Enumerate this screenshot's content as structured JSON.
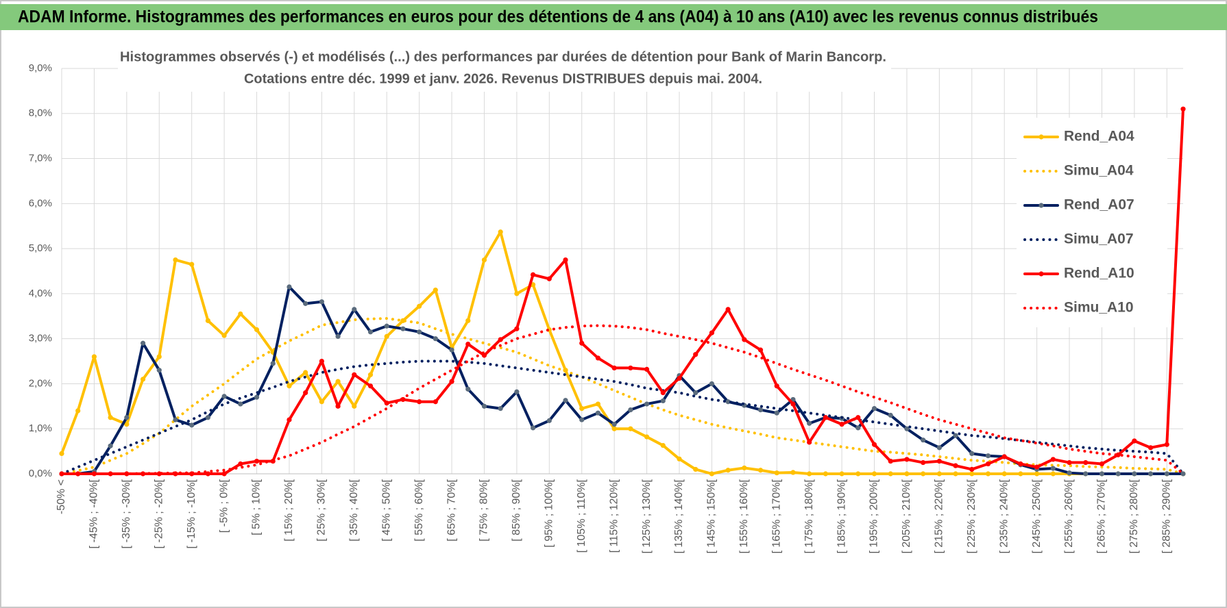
{
  "header": {
    "title": "ADAM Informe. Histogrammes des performances en euros pour des détentions de 4 ans (A04) à 10 ans (A10) avec les revenus connus distribués"
  },
  "chart_data": {
    "type": "line",
    "title": "Histogrammes observés (-) et modélisés (...) des performances par durées de détention pour Bank of Marin Bancorp.",
    "subtitle": "Cotations entre déc. 1999 et janv. 2026.  Revenus DISTRIBUES depuis mai. 2004.",
    "categories": [
      "-50% <",
      null,
      "[ -45% ; -40%[",
      null,
      "[ -35% ; -30%[",
      null,
      "[ -25% ; -20%[",
      null,
      "[ -15% ; -10%[",
      null,
      "[ -5% ; 0%[",
      null,
      "[ 5% ; 10%[",
      null,
      "[ 15% ; 20%[",
      null,
      "[ 25% ; 30%[",
      null,
      "[ 35% ; 40%[",
      null,
      "[ 45% ; 50%[",
      null,
      "[ 55% ; 60%[",
      null,
      "[ 65% ; 70%[",
      null,
      "[ 75% ; 80%[",
      null,
      "[ 85% ; 90%[",
      null,
      "[ 95% ; 100%[",
      null,
      "[ 105% ; 110%[",
      null,
      "[ 115% ; 120%[",
      null,
      "[ 125% ; 130%[",
      null,
      "[ 135% ; 140%[",
      null,
      "[ 145% ; 150%[",
      null,
      "[ 155% ; 160%[",
      null,
      "[ 165% ; 170%[",
      null,
      "[ 175% ; 180%[",
      null,
      "[ 185% ; 190%[",
      null,
      "[ 195% ; 200%[",
      null,
      "[ 205% ; 210%[",
      null,
      "[ 215% ; 220%[",
      null,
      "[ 225% ; 230%[",
      null,
      "[ 235% ; 240%[",
      null,
      "[ 245% ; 250%[",
      null,
      "[ 255% ; 260%[",
      null,
      "[ 265% ; 270%[",
      null,
      "[ 275% ; 280%[",
      null,
      "[ 285% ; 290%[",
      null
    ],
    "series": [
      {
        "name": "Rend_A04",
        "color": "#ffc000",
        "line_style": "solid",
        "marker_color": "#ffc000",
        "values": [
          0.45,
          1.4,
          2.6,
          1.25,
          1.1,
          2.1,
          2.6,
          4.75,
          4.65,
          3.4,
          3.07,
          3.55,
          3.2,
          2.7,
          1.95,
          2.25,
          1.6,
          2.05,
          1.5,
          2.2,
          3.05,
          3.4,
          3.72,
          4.08,
          2.8,
          3.4,
          4.75,
          5.37,
          4.0,
          4.2,
          3.2,
          2.3,
          1.45,
          1.55,
          1.0,
          1.0,
          0.82,
          0.63,
          0.33,
          0.1,
          0.0,
          0.08,
          0.13,
          0.08,
          0.02,
          0.03,
          0,
          0,
          0,
          0,
          0,
          0,
          0,
          0,
          0,
          0,
          0,
          0,
          0,
          0,
          0,
          0,
          0,
          0,
          0,
          0,
          0,
          0,
          0,
          0
        ]
      },
      {
        "name": "Simu_A04",
        "color": "#ffc000",
        "line_style": "dotted",
        "values": [
          0,
          0.07,
          0.15,
          0.3,
          0.45,
          0.67,
          0.9,
          1.2,
          1.5,
          1.75,
          2.0,
          2.28,
          2.55,
          2.75,
          2.95,
          3.12,
          3.3,
          3.36,
          3.42,
          3.44,
          3.45,
          3.4,
          3.35,
          3.22,
          3.1,
          3.0,
          2.9,
          2.8,
          2.7,
          2.55,
          2.4,
          2.28,
          2.15,
          2.0,
          1.85,
          1.7,
          1.55,
          1.42,
          1.3,
          1.2,
          1.1,
          1.02,
          0.95,
          0.88,
          0.8,
          0.75,
          0.7,
          0.65,
          0.6,
          0.55,
          0.5,
          0.48,
          0.45,
          0.42,
          0.38,
          0.34,
          0.3,
          0.28,
          0.25,
          0.22,
          0.2,
          0.19,
          0.18,
          0.16,
          0.15,
          0.14,
          0.12,
          0.11,
          0.1,
          0
        ]
      },
      {
        "name": "Rend_A07",
        "color": "#002060",
        "line_style": "solid",
        "marker_color": "#5a6b7d",
        "values": [
          0,
          0,
          0.05,
          0.62,
          1.25,
          2.9,
          2.3,
          1.2,
          1.08,
          1.25,
          1.72,
          1.55,
          1.7,
          2.45,
          4.15,
          3.78,
          3.82,
          3.05,
          3.65,
          3.15,
          3.28,
          3.22,
          3.15,
          3.0,
          2.75,
          1.88,
          1.5,
          1.45,
          1.82,
          1.02,
          1.18,
          1.63,
          1.2,
          1.35,
          1.1,
          1.42,
          1.55,
          1.62,
          2.18,
          1.8,
          2.0,
          1.6,
          1.52,
          1.42,
          1.35,
          1.65,
          1.12,
          1.25,
          1.23,
          1.02,
          1.45,
          1.3,
          1.0,
          0.75,
          0.58,
          0.85,
          0.45,
          0.4,
          0.38,
          0.2,
          0.1,
          0.12,
          0.02,
          0,
          0,
          0,
          0,
          0,
          0,
          0
        ]
      },
      {
        "name": "Simu_A07",
        "color": "#002060",
        "line_style": "dotted",
        "values": [
          0,
          0.15,
          0.3,
          0.45,
          0.6,
          0.75,
          0.9,
          1.05,
          1.2,
          1.38,
          1.55,
          1.68,
          1.8,
          1.92,
          2.05,
          2.15,
          2.25,
          2.32,
          2.38,
          2.42,
          2.45,
          2.48,
          2.5,
          2.5,
          2.5,
          2.48,
          2.45,
          2.4,
          2.35,
          2.3,
          2.25,
          2.2,
          2.15,
          2.1,
          2.05,
          1.98,
          1.9,
          1.85,
          1.8,
          1.72,
          1.65,
          1.6,
          1.55,
          1.5,
          1.45,
          1.4,
          1.35,
          1.3,
          1.25,
          1.2,
          1.15,
          1.1,
          1.05,
          1.0,
          0.95,
          0.9,
          0.85,
          0.82,
          0.78,
          0.74,
          0.7,
          0.66,
          0.62,
          0.58,
          0.55,
          0.52,
          0.5,
          0.48,
          0.45,
          0
        ]
      },
      {
        "name": "Rend_A10",
        "color": "#ff0000",
        "line_style": "solid",
        "marker_color": "#ff0000",
        "values": [
          0,
          0,
          0,
          0,
          0,
          0,
          0,
          0,
          0,
          0,
          0,
          0.22,
          0.28,
          0.28,
          1.2,
          1.8,
          2.5,
          1.5,
          2.2,
          1.95,
          1.57,
          1.65,
          1.6,
          1.6,
          2.05,
          2.88,
          2.63,
          2.98,
          3.22,
          4.42,
          4.33,
          4.75,
          2.9,
          2.57,
          2.35,
          2.35,
          2.32,
          1.8,
          2.12,
          2.65,
          3.13,
          3.65,
          2.98,
          2.75,
          1.95,
          1.55,
          0.7,
          1.25,
          1.1,
          1.25,
          0.65,
          0.28,
          0.32,
          0.25,
          0.28,
          0.18,
          0.1,
          0.22,
          0.38,
          0.22,
          0.15,
          0.32,
          0.25,
          0.25,
          0.22,
          0.42,
          0.73,
          0.58,
          0.65,
          8.1
        ]
      },
      {
        "name": "Simu_A10",
        "color": "#ff0000",
        "line_style": "dotted",
        "values": [
          0,
          0,
          0,
          0,
          0,
          0.01,
          0.01,
          0.02,
          0.02,
          0.05,
          0.08,
          0.14,
          0.2,
          0.3,
          0.4,
          0.55,
          0.7,
          0.88,
          1.05,
          1.25,
          1.45,
          1.68,
          1.9,
          2.1,
          2.3,
          2.5,
          2.7,
          2.85,
          3.0,
          3.1,
          3.2,
          3.25,
          3.28,
          3.29,
          3.28,
          3.25,
          3.2,
          3.12,
          3.05,
          2.98,
          2.9,
          2.8,
          2.7,
          2.58,
          2.45,
          2.32,
          2.2,
          2.08,
          1.95,
          1.82,
          1.7,
          1.58,
          1.45,
          1.32,
          1.2,
          1.1,
          1.0,
          0.9,
          0.8,
          0.74,
          0.68,
          0.62,
          0.55,
          0.5,
          0.45,
          0.42,
          0.38,
          0.34,
          0.3,
          0
        ]
      }
    ],
    "ylim": [
      0,
      9
    ],
    "yticks": [
      {
        "value": 0,
        "label": "0,0%"
      },
      {
        "value": 1,
        "label": "1,0%"
      },
      {
        "value": 2,
        "label": "2,0%"
      },
      {
        "value": 3,
        "label": "3,0%"
      },
      {
        "value": 4,
        "label": "4,0%"
      },
      {
        "value": 5,
        "label": "5,0%"
      },
      {
        "value": 6,
        "label": "6,0%"
      },
      {
        "value": 7,
        "label": "7,0%"
      },
      {
        "value": 8,
        "label": "8,0%"
      },
      {
        "value": 9,
        "label": "9,0%"
      }
    ],
    "grid": true,
    "legend": "right"
  }
}
